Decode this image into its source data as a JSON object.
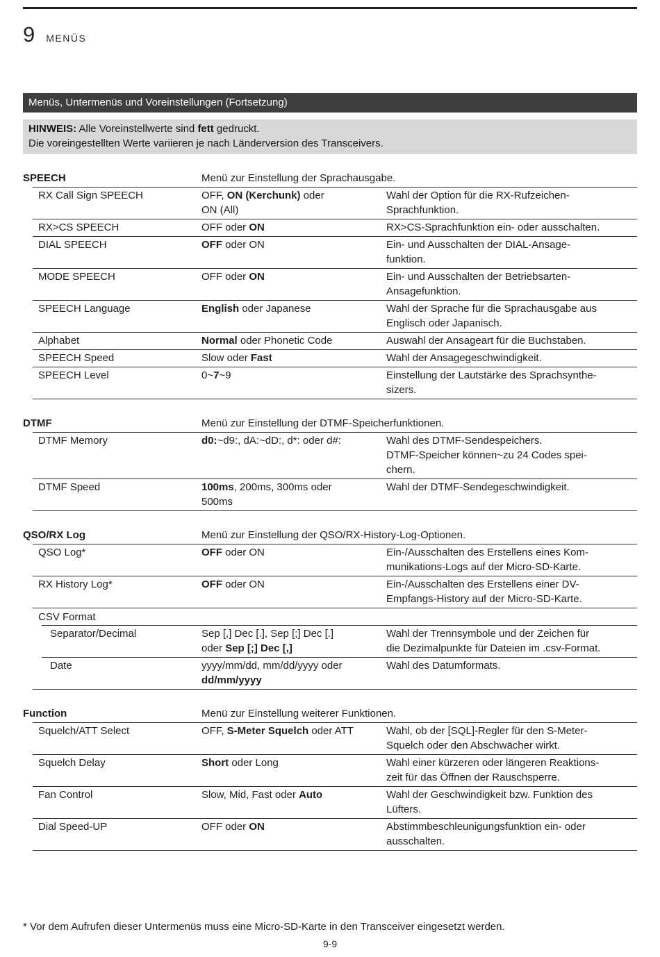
{
  "header": {
    "chapter_number": "9",
    "chapter_title": "MENÜS"
  },
  "section_bar": {
    "title": "Menüs, Untermenüs und Voreinstellungen (Fortsetzung)",
    "background_color": "#403d3e"
  },
  "notice": {
    "background_color": "#d8d8d8",
    "line1": [
      {
        "t": "HINWEIS:",
        "b": true
      },
      {
        "t": " Alle Voreinstellwerte sind ",
        "b": false
      },
      {
        "t": "fett",
        "b": true
      },
      {
        "t": " gedruckt.",
        "b": false
      }
    ],
    "line2": "Die voreingestellten Werte variieren je nach Länderversion des Transceivers."
  },
  "menu_table": {
    "sections": [
      {
        "name": "SPEECH",
        "description": "Menü zur Einstellung der Sprachausgabe.",
        "rows": [
          {
            "item": "RX Call Sign SPEECH",
            "values": [
              {
                "t": "OFF, ",
                "b": false
              },
              {
                "t": "ON (Kerchunk)",
                "b": true
              },
              {
                "t": " oder\nON (All)",
                "b": false
              }
            ],
            "description": "Wahl der Option für die RX-Rufzeichen-\nSprachfunktion."
          },
          {
            "item": "RX>CS SPEECH",
            "values": [
              {
                "t": "OFF oder ",
                "b": false
              },
              {
                "t": "ON",
                "b": true
              }
            ],
            "description": "RX>CS-Sprachfunktion ein- oder ausschalten."
          },
          {
            "item": "DIAL SPEECH",
            "values": [
              {
                "t": "OFF",
                "b": true
              },
              {
                "t": " oder ON",
                "b": false
              }
            ],
            "description": "Ein- und Ausschalten der DIAL-Ansage-\nfunktion."
          },
          {
            "item": "MODE SPEECH",
            "values": [
              {
                "t": "OFF oder ",
                "b": false
              },
              {
                "t": "ON",
                "b": true
              }
            ],
            "description": "Ein- und Ausschalten der Betriebsarten-\nAnsagefunktion."
          },
          {
            "item": "SPEECH Language",
            "values": [
              {
                "t": "English",
                "b": true
              },
              {
                "t": " oder Japanese",
                "b": false
              }
            ],
            "description": "Wahl der Sprache für die Sprachausgabe aus\nEnglisch oder Japanisch."
          },
          {
            "item": "Alphabet",
            "values": [
              {
                "t": "Normal",
                "b": true
              },
              {
                "t": " oder Phonetic Code",
                "b": false
              }
            ],
            "description": "Auswahl der Ansageart für die Buchstaben."
          },
          {
            "item": "SPEECH Speed",
            "values": [
              {
                "t": "Slow oder ",
                "b": false
              },
              {
                "t": "Fast",
                "b": true
              }
            ],
            "description": "Wahl der Ansagegeschwindigkeit."
          },
          {
            "item": "SPEECH Level",
            "values": [
              {
                "t": "0~",
                "b": false
              },
              {
                "t": "7",
                "b": true
              },
              {
                "t": "~9",
                "b": false
              }
            ],
            "description": "Einstellung der Lautstärke des Sprachsynthe-\nsizers."
          }
        ]
      },
      {
        "name": "DTMF",
        "description": "Menü zur Einstellung der DTMF-Speicherfunktionen.",
        "rows": [
          {
            "item": "DTMF Memory",
            "values": [
              {
                "t": "d0:",
                "b": true
              },
              {
                "t": "~d9:, dA:~dD:, d*: oder d#:",
                "b": false
              }
            ],
            "description": "Wahl des DTMF-Sendespeichers.\nDTMF-Speicher können~zu 24 Codes spei-\nchern."
          },
          {
            "item": "DTMF Speed",
            "values": [
              {
                "t": "100ms",
                "b": true
              },
              {
                "t": ", 200ms, 300ms oder\n500ms",
                "b": false
              }
            ],
            "description": "Wahl der DTMF-Sendegeschwindigkeit."
          }
        ]
      },
      {
        "name": "QSO/RX Log",
        "description": "Menü zur Einstellung der QSO/RX-History-Log-Optionen.",
        "rows": [
          {
            "item": "QSO Log*",
            "values": [
              {
                "t": "OFF",
                "b": true
              },
              {
                "t": " oder ON",
                "b": false
              }
            ],
            "description": "Ein-/Ausschalten des Erstellens eines Kom-\nmunikations-Logs auf der Micro-SD-Karte."
          },
          {
            "item": "RX History Log*",
            "values": [
              {
                "t": "OFF",
                "b": true
              },
              {
                "t": " oder ON",
                "b": false
              }
            ],
            "description": "Ein-/Ausschalten des Erstellens einer DV-\nEmpfangs-History auf der Micro-SD-Karte."
          },
          {
            "item": "CSV Format",
            "subheader": true
          },
          {
            "item": "Separator/Decimal",
            "sub": true,
            "values": [
              {
                "t": "Sep [,] Dec [.], Sep [;] Dec [.]\noder ",
                "b": false
              },
              {
                "t": "Sep [;] Dec [,]",
                "b": true
              }
            ],
            "description": "Wahl der Trennsymbole und der Zeichen für\ndie Dezimalpunkte für Dateien im .csv-Format."
          },
          {
            "item": "Date",
            "sub": true,
            "values": [
              {
                "t": "yyyy/mm/dd, mm/dd/yyyy oder\n",
                "b": false
              },
              {
                "t": "dd/mm/yyyy",
                "b": true
              }
            ],
            "description": "Wahl des Datumformats."
          }
        ]
      },
      {
        "name": "Function",
        "description": "Menü zur Einstellung weiterer Funktionen.",
        "rows": [
          {
            "item": "Squelch/ATT Select",
            "values": [
              {
                "t": "OFF, ",
                "b": false
              },
              {
                "t": "S-Meter Squelch",
                "b": true
              },
              {
                "t": " oder ATT",
                "b": false
              }
            ],
            "description": "Wahl, ob der [SQL]-Regler für den S-Meter-\nSquelch oder den Abschwächer wirkt."
          },
          {
            "item": "Squelch Delay",
            "values": [
              {
                "t": "Short",
                "b": true
              },
              {
                "t": " oder Long",
                "b": false
              }
            ],
            "description": "Wahl einer kürzeren oder längeren Reaktions-\nzeit für das Öffnen der Rauschsperre."
          },
          {
            "item": "Fan Control",
            "values": [
              {
                "t": "Slow, Mid, Fast oder ",
                "b": false
              },
              {
                "t": "Auto",
                "b": true
              }
            ],
            "description": "Wahl der Geschwindigkeit bzw. Funktion des\nLüfters."
          },
          {
            "item": "Dial Speed-UP",
            "values": [
              {
                "t": "OFF oder ",
                "b": false
              },
              {
                "t": "ON",
                "b": true
              }
            ],
            "description": "Abstimmbeschleunigungsfunktion ein- oder\nausschalten."
          }
        ]
      }
    ]
  },
  "footer": {
    "footnote": "* Vor dem Aufrufen dieser Untermenüs muss eine Micro-SD-Karte in den Transceiver eingesetzt werden.",
    "page_number": "9-9"
  }
}
